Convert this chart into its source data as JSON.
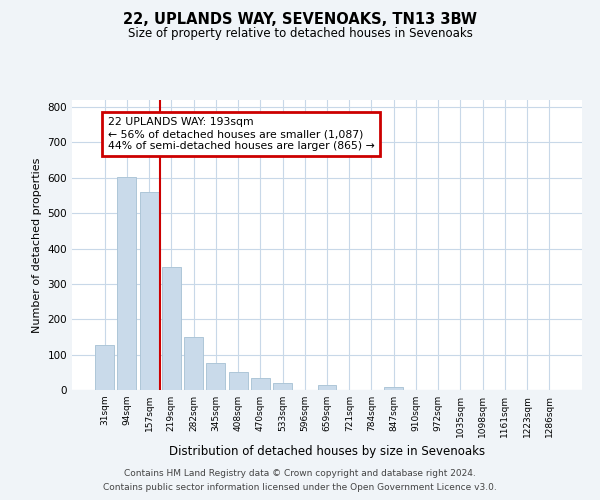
{
  "title": "22, UPLANDS WAY, SEVENOAKS, TN13 3BW",
  "subtitle": "Size of property relative to detached houses in Sevenoaks",
  "xlabel": "Distribution of detached houses by size in Sevenoaks",
  "ylabel": "Number of detached properties",
  "bar_labels": [
    "31sqm",
    "94sqm",
    "157sqm",
    "219sqm",
    "282sqm",
    "345sqm",
    "408sqm",
    "470sqm",
    "533sqm",
    "596sqm",
    "659sqm",
    "721sqm",
    "784sqm",
    "847sqm",
    "910sqm",
    "972sqm",
    "1035sqm",
    "1098sqm",
    "1161sqm",
    "1223sqm",
    "1286sqm"
  ],
  "bar_values": [
    128,
    601,
    560,
    349,
    151,
    75,
    51,
    34,
    20,
    0,
    13,
    0,
    0,
    8,
    0,
    0,
    0,
    0,
    0,
    0,
    0
  ],
  "bar_color": "#c9daea",
  "bar_edge_color": "#aec6d8",
  "vline_x": 2.5,
  "vline_color": "#cc0000",
  "annotation_title": "22 UPLANDS WAY: 193sqm",
  "annotation_line1": "← 56% of detached houses are smaller (1,087)",
  "annotation_line2": "44% of semi-detached houses are larger (865) →",
  "annotation_box_color": "#cc0000",
  "ylim": [
    0,
    820
  ],
  "yticks": [
    0,
    100,
    200,
    300,
    400,
    500,
    600,
    700,
    800
  ],
  "footer_line1": "Contains HM Land Registry data © Crown copyright and database right 2024.",
  "footer_line2": "Contains public sector information licensed under the Open Government Licence v3.0.",
  "bg_color": "#f0f4f8",
  "plot_bg_color": "#ffffff",
  "grid_color": "#c8d8e8"
}
